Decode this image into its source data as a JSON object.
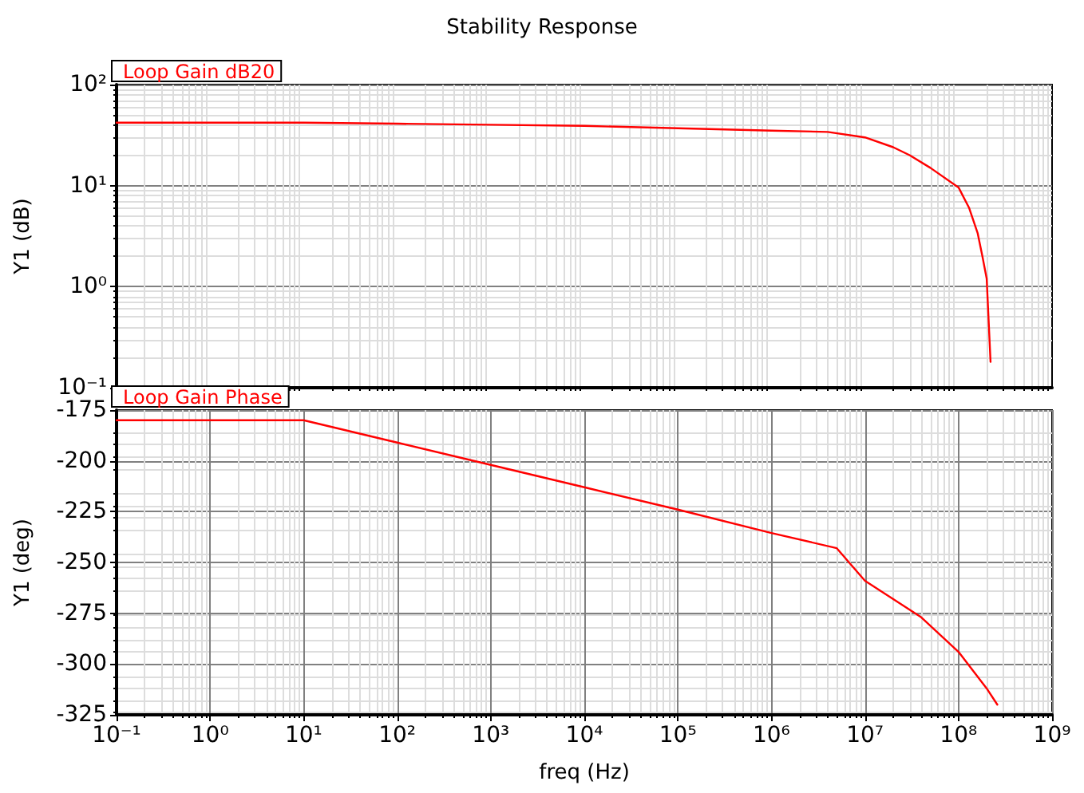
{
  "chart_data": [
    {
      "type": "line",
      "title": "Stability Response",
      "ylabel": "Y1 (dB)",
      "log": "xy",
      "grid": true,
      "legend": "top left",
      "tick_labels": "y",
      "marker": "none",
      "line_style": "solid",
      "xlim": [
        0.1,
        1000000000
      ],
      "ylim": [
        0.1,
        100
      ],
      "yticks": [
        {
          "value": 0.1,
          "label": "10⁻¹"
        },
        {
          "value": 1,
          "label": "10⁰"
        },
        {
          "value": 10,
          "label": "10¹"
        },
        {
          "value": 100,
          "label": "10²"
        }
      ],
      "series": [
        {
          "name": "Loop Gain dB20",
          "color": "#ff0000",
          "x": [
            0.1,
            10,
            100,
            1000,
            10000,
            100000,
            1000000,
            4000000,
            10000000,
            20000000,
            30000000,
            50000000,
            100000000,
            130000000,
            160000000,
            180000000,
            200000000,
            220000000
          ],
          "values": [
            42,
            42,
            41,
            40,
            39,
            37,
            35,
            34,
            30,
            24,
            20,
            15,
            9.6,
            6,
            3.4,
            2,
            1.2,
            0.18
          ]
        }
      ]
    },
    {
      "type": "line",
      "xlabel": "freq (Hz)",
      "ylabel": "Y1 (deg)",
      "log": "x",
      "grid": true,
      "legend": "top left",
      "marker": "none",
      "line_style": "solid",
      "xlim": [
        0.1,
        1000000000
      ],
      "xticks": [
        {
          "value": 0.1,
          "label": "10⁻¹"
        },
        {
          "value": 1,
          "label": "10⁰"
        },
        {
          "value": 10,
          "label": "10¹"
        },
        {
          "value": 100,
          "label": "10²"
        },
        {
          "value": 1000,
          "label": "10³"
        },
        {
          "value": 10000,
          "label": "10⁴"
        },
        {
          "value": 100000,
          "label": "10⁵"
        },
        {
          "value": 1000000,
          "label": "10⁶"
        },
        {
          "value": 10000000,
          "label": "10⁷"
        },
        {
          "value": 100000000,
          "label": "10⁸"
        },
        {
          "value": 1000000000,
          "label": "10⁹"
        }
      ],
      "ylim": [
        -325,
        -175
      ],
      "yticks": [
        -325,
        -300,
        -275,
        -250,
        -225,
        -200,
        -175
      ],
      "series": [
        {
          "name": "Loop Gain Phase",
          "color": "#ff0000",
          "x": [
            0.1,
            10,
            100,
            1000,
            10000,
            100000,
            1000000,
            5000000,
            10000000,
            40000000,
            100000000,
            200000000,
            260000000
          ],
          "values": [
            -180,
            -180,
            -191,
            -202,
            -213,
            -224,
            -235.5,
            -243,
            -259,
            -277,
            -294,
            -312,
            -320
          ]
        }
      ]
    }
  ]
}
